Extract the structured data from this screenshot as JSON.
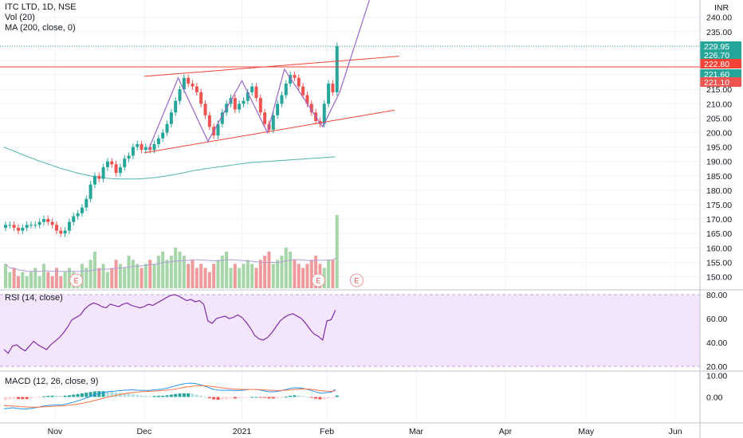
{
  "header": {
    "symbol": "ITC LTD, 1D, NSE",
    "volume_label": "Vol (20)",
    "ma_label": "MA (200, close, 0)",
    "currency": "INR"
  },
  "rsi_label": "RSI (14, close)",
  "macd_label": "MACD (12, 26, close, 9)",
  "colors": {
    "up": "#26a69a",
    "down": "#ef5350",
    "vol_up": "#a5d6a7",
    "vol_down": "#ef9a9a",
    "ma": "#4db6ac",
    "pattern": "#9c64c8",
    "channel": "#f44336",
    "rsi": "#7b1fa2",
    "rsi_band": "#f3e5fb",
    "macd": "#2196f3",
    "signal": "#ff7043"
  },
  "chart_data": [
    {
      "type": "candlestick",
      "title": "ITC LTD, 1D, NSE",
      "x_ticks": [
        "Nov",
        "Dec",
        "2021",
        "Feb",
        "Mar",
        "Apr",
        "May",
        "Jun"
      ],
      "ylim": [
        146,
        246
      ],
      "y_ticks": [
        150,
        155,
        160,
        165,
        170,
        175,
        180,
        185,
        190,
        195,
        200,
        205,
        210,
        215,
        220,
        225,
        230,
        235,
        240
      ],
      "y_tick_labels": [
        "150.00",
        "155.00",
        "160.00",
        "165.00",
        "170.00",
        "175.00",
        "180.00",
        "185.00",
        "190.00",
        "195.00",
        "200.00",
        "205.00",
        "210.00",
        "215.00",
        "220.00",
        "225.00",
        "230.00",
        "235.00",
        "240.00"
      ],
      "closes": [
        168,
        168,
        167,
        166,
        167,
        168,
        168,
        168,
        169,
        170,
        169,
        168,
        166,
        165,
        166,
        169,
        171,
        172,
        174,
        177,
        182,
        185,
        184,
        188,
        190,
        189,
        186,
        188,
        191,
        192,
        195,
        196,
        194,
        195,
        194,
        196,
        198,
        200,
        203,
        207,
        211,
        215,
        219,
        217,
        216,
        214,
        210,
        206,
        202,
        199,
        203,
        207,
        210,
        212,
        208,
        210,
        211,
        214,
        216,
        212,
        207,
        203,
        201,
        206,
        210,
        213,
        217,
        220,
        219,
        216,
        213,
        210,
        207,
        204,
        203,
        210,
        217,
        214,
        229.95
      ],
      "ma200": [
        195,
        194.4,
        193.8,
        193.2,
        192.6,
        192,
        191.4,
        190.9,
        190.3,
        189.8,
        189.3,
        188.8,
        188.3,
        187.8,
        187.3,
        186.9,
        186.5,
        186.1,
        185.7,
        185.4,
        185.1,
        184.8,
        184.6,
        184.4,
        184.2,
        184.1,
        184,
        183.9,
        183.9,
        183.9,
        183.9,
        183.9,
        184,
        184.1,
        184.2,
        184.3,
        184.5,
        184.7,
        184.9,
        185.2,
        185.4,
        185.7,
        186,
        186.3,
        186.6,
        186.9,
        187.1,
        187.4,
        187.6,
        187.8,
        188,
        188.2,
        188.4,
        188.6,
        188.8,
        189,
        189.2,
        189.4,
        189.6,
        189.7,
        189.8,
        189.9,
        190,
        190.1,
        190.2,
        190.3,
        190.4,
        190.5,
        190.6,
        190.7,
        190.8,
        190.9,
        191,
        191.1,
        191.2,
        191.3,
        191.4,
        191.5,
        191.6
      ],
      "volume": [
        6,
        4,
        5,
        3,
        4,
        3,
        4,
        5,
        3,
        6,
        4,
        3,
        5,
        3,
        4,
        5,
        4,
        3,
        6,
        5,
        7,
        9,
        5,
        6,
        4,
        5,
        7,
        6,
        5,
        8,
        7,
        6,
        5,
        6,
        7,
        6,
        8,
        9,
        7,
        8,
        10,
        9,
        8,
        6,
        7,
        5,
        6,
        5,
        4,
        6,
        7,
        8,
        9,
        5,
        6,
        5,
        6,
        7,
        6,
        5,
        7,
        8,
        9,
        6,
        7,
        8,
        10,
        9,
        7,
        6,
        5,
        6,
        7,
        8,
        6,
        5,
        7,
        7,
        18
      ],
      "markers": [
        "E",
        "E",
        "E"
      ],
      "annotations": [
        "pattern",
        "channel-top",
        "channel-bottom",
        "horizontal-222.80"
      ],
      "price_tags": [
        {
          "value": 229.95,
          "label": "229.95",
          "color": "#26a69a"
        },
        {
          "value": 226.7,
          "label": "226.70",
          "color": "#26a69a"
        },
        {
          "value": 222.8,
          "label": "222.80",
          "color": "#f44336"
        },
        {
          "value": 221.6,
          "label": "221.60",
          "color": "#26a69a"
        },
        {
          "value": 221.1,
          "label": "221.10",
          "color": "#ef5350"
        }
      ]
    },
    {
      "type": "line",
      "title": "RSI (14, close)",
      "ylim": [
        16,
        84
      ],
      "y_ticks": [
        20,
        40,
        60,
        80
      ],
      "y_tick_labels": [
        "20.00",
        "40.00",
        "60.00",
        "80.00"
      ],
      "band": [
        20,
        80
      ],
      "values": [
        34,
        31,
        37,
        38,
        35,
        33,
        37,
        41,
        38,
        36,
        34,
        38,
        41,
        44,
        48,
        53,
        59,
        61,
        63,
        68,
        71,
        73,
        72,
        70,
        69,
        72,
        71,
        70,
        72,
        73,
        71,
        70,
        69,
        70,
        72,
        71,
        73,
        75,
        77,
        79,
        80,
        79,
        77,
        75,
        76,
        74,
        75,
        72,
        58,
        56,
        60,
        61,
        62,
        60,
        61,
        63,
        61,
        57,
        52,
        46,
        43,
        42,
        44,
        48,
        53,
        58,
        61,
        63,
        64,
        62,
        60,
        56,
        51,
        47,
        45,
        42,
        58,
        59,
        67
      ]
    },
    {
      "type": "macd",
      "title": "MACD (12, 26, close, 9)",
      "ylim": [
        -12,
        12
      ],
      "y_ticks": [
        0,
        10
      ],
      "y_tick_labels": [
        "0.00",
        "10.00"
      ],
      "macd": [
        -5.5,
        -5.2,
        -5,
        -5.2,
        -5.5,
        -5.6,
        -5.4,
        -5.1,
        -4.8,
        -4.3,
        -4,
        -3.8,
        -3.7,
        -3.7,
        -3.5,
        -3.1,
        -2.6,
        -2,
        -1.4,
        -0.7,
        0,
        0.8,
        1.4,
        1.9,
        2.3,
        2.6,
        2.7,
        2.9,
        3.1,
        3.2,
        3.3,
        3.2,
        3.1,
        3.1,
        3,
        3.2,
        3.4,
        3.6,
        3.9,
        4.4,
        5,
        5.5,
        6,
        6.3,
        6.4,
        6.2,
        5.8,
        5.2,
        4.5,
        3.7,
        3.3,
        3.1,
        3.1,
        3.2,
        3,
        3,
        3.1,
        3.3,
        3.5,
        3.5,
        3.3,
        2.9,
        2.5,
        2.4,
        2.5,
        2.8,
        3.3,
        3.8,
        4.2,
        4.3,
        4.1,
        3.7,
        3.2,
        2.6,
        2,
        1.7,
        2.1,
        2.2,
        3.5
      ],
      "signal": [
        -4,
        -4.1,
        -4.2,
        -4.3,
        -4.5,
        -4.6,
        -4.7,
        -4.7,
        -4.7,
        -4.6,
        -4.5,
        -4.4,
        -4.3,
        -4.2,
        -4.1,
        -3.9,
        -3.7,
        -3.4,
        -3.1,
        -2.7,
        -2.3,
        -1.8,
        -1.3,
        -0.8,
        -0.3,
        0.2,
        0.6,
        1,
        1.4,
        1.7,
        2,
        2.2,
        2.4,
        2.5,
        2.6,
        2.7,
        2.8,
        3,
        3.1,
        3.3,
        3.6,
        3.9,
        4.3,
        4.6,
        4.9,
        5.1,
        5.2,
        5.2,
        5.1,
        4.8,
        4.6,
        4.3,
        4.1,
        3.9,
        3.7,
        3.6,
        3.5,
        3.5,
        3.5,
        3.5,
        3.4,
        3.3,
        3.2,
        3.1,
        3,
        3,
        3.1,
        3.2,
        3.4,
        3.6,
        3.7,
        3.7,
        3.6,
        3.4,
        3.1,
        2.8,
        2.7,
        2.6,
        2.8
      ]
    }
  ]
}
